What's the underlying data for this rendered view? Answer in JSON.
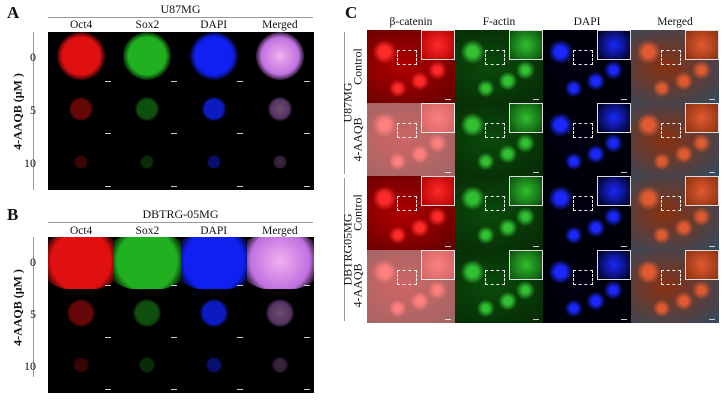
{
  "panel_a": {
    "label": "A",
    "title": "U87MG",
    "columns": [
      "Oct4",
      "Sox2",
      "DAPI",
      "Merged"
    ],
    "rows": [
      "0",
      "5",
      "10"
    ],
    "ylabel": "4-AAQB (μM )"
  },
  "panel_b": {
    "label": "B",
    "title": "DBTRG-05MG",
    "columns": [
      "Oct4",
      "Sox2",
      "DAPI",
      "Merged"
    ],
    "rows": [
      "0",
      "5",
      "10"
    ],
    "ylabel": "4-AAQB (μM )"
  },
  "panel_c": {
    "label": "C",
    "columns": [
      "β-catenin",
      "F-actin",
      "DAPI",
      "Merged"
    ],
    "groups": [
      {
        "name": "U87MG",
        "rows": [
          "Control",
          "4-AAQB"
        ]
      },
      {
        "name": "DBTRG05MG",
        "rows": [
          "Control",
          "4-AAQB"
        ]
      }
    ]
  },
  "channel_colors": {
    "red": "#e01010",
    "green": "#20b020",
    "blue": "#1020f0",
    "merged": "#c070e0"
  }
}
